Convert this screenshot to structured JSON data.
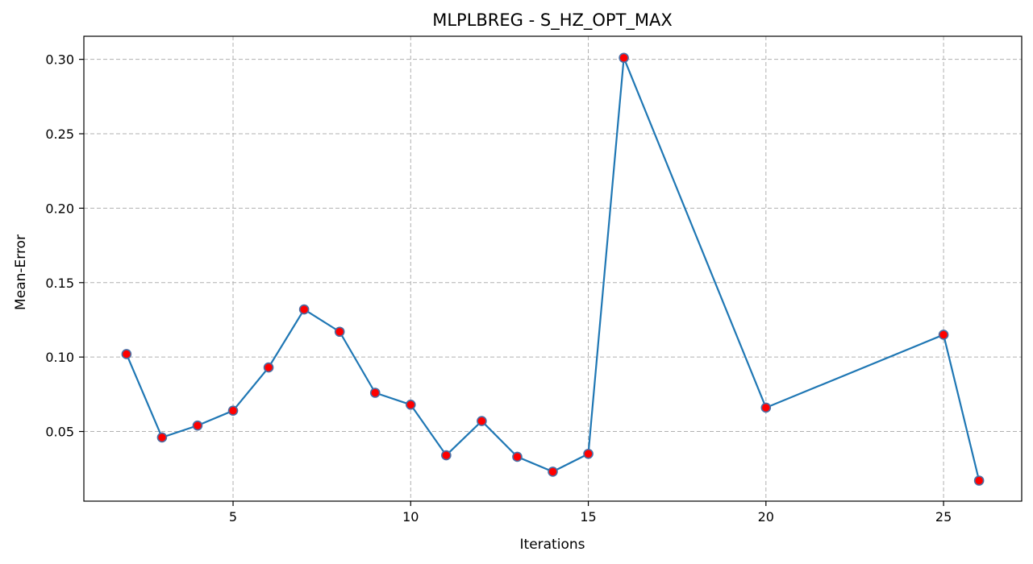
{
  "chart_data": {
    "type": "line",
    "title": "MLPLBREG - S_HZ_OPT_MAX",
    "xlabel": "Iterations",
    "ylabel": "Mean-Error",
    "xlim": [
      0.8,
      27.2
    ],
    "ylim": [
      0.0032,
      0.3155
    ],
    "xticks": [
      5,
      10,
      15,
      20,
      25
    ],
    "yticks": [
      0.05,
      0.1,
      0.15,
      0.2,
      0.25,
      0.3
    ],
    "xtick_labels": [
      "5",
      "10",
      "15",
      "20",
      "25"
    ],
    "ytick_labels": [
      "0.05",
      "0.10",
      "0.15",
      "0.20",
      "0.25",
      "0.30"
    ],
    "grid": true,
    "legend": null,
    "series": [
      {
        "x": [
          2,
          3,
          4,
          5,
          6,
          7,
          8,
          9,
          10,
          11,
          12,
          13,
          14,
          15,
          16,
          20,
          25,
          26
        ],
        "y": [
          0.102,
          0.046,
          0.054,
          0.064,
          0.093,
          0.132,
          0.117,
          0.076,
          0.068,
          0.034,
          0.057,
          0.033,
          0.023,
          0.035,
          0.301,
          0.066,
          0.115,
          0.017
        ],
        "line_color": "#1f77b4",
        "marker_face_color": "#ff0000",
        "marker_edge_color": "#4a6fa5"
      }
    ]
  }
}
